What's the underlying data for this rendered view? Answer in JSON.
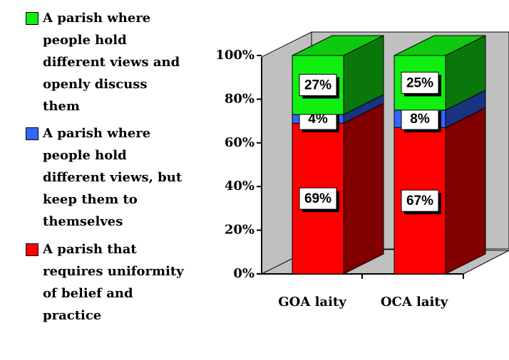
{
  "chart_data": {
    "type": "stacked-bar-3d",
    "categories": [
      "GOA laity",
      "OCA laity"
    ],
    "series": [
      {
        "name": "A parish that requires uniformity of belief and practice",
        "color": "#ff0000",
        "values": [
          69,
          67
        ],
        "value_labels": [
          "69%",
          "67%"
        ]
      },
      {
        "name": "A parish where people hold different views, but keep them to themselves",
        "color": "#3366ff",
        "values": [
          4,
          8
        ],
        "value_labels": [
          "4%",
          "8%"
        ]
      },
      {
        "name": "A parish where people hold different views and openly discuss them",
        "color": "#11ee11",
        "values": [
          27,
          25
        ],
        "value_labels": [
          "27%",
          "25%"
        ]
      }
    ],
    "ylim": [
      0,
      100
    ],
    "yticks": [
      {
        "value": 0,
        "label": "0%"
      },
      {
        "value": 20,
        "label": "20%"
      },
      {
        "value": 40,
        "label": "40%"
      },
      {
        "value": 60,
        "label": "60%"
      },
      {
        "value": 80,
        "label": "80%"
      },
      {
        "value": 100,
        "label": "100%"
      }
    ],
    "legend": "left"
  }
}
